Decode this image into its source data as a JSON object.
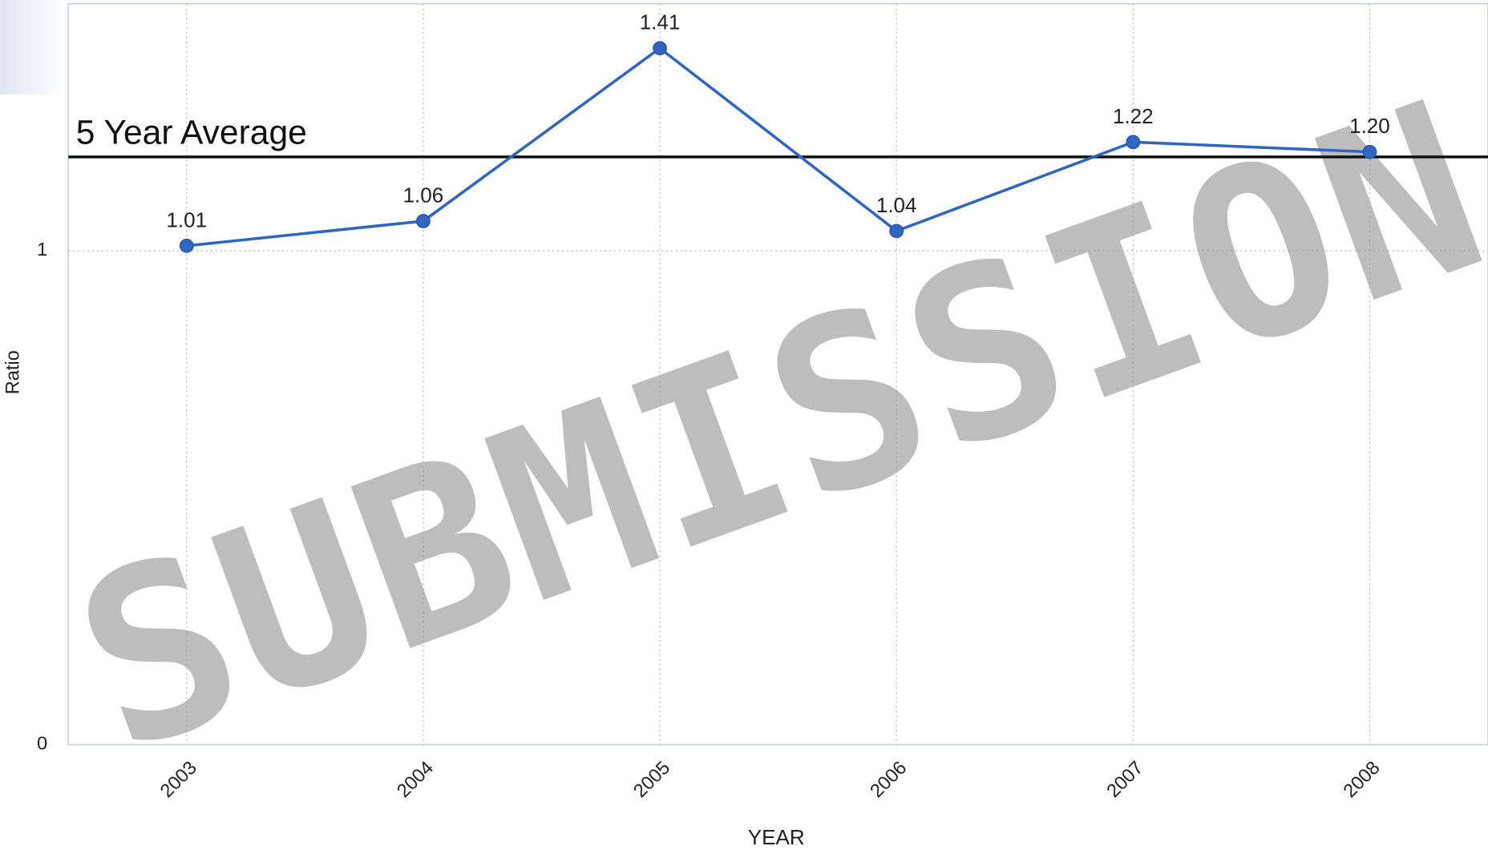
{
  "chart_data": {
    "type": "line",
    "categories": [
      "2003",
      "2004",
      "2005",
      "2006",
      "2007",
      "2008"
    ],
    "series": [
      {
        "name": "Ratio",
        "color": "#2f66c4",
        "values": [
          1.01,
          1.06,
          1.41,
          1.04,
          1.22,
          1.2
        ],
        "value_labels": [
          "1.01",
          "1.06",
          "1.41",
          "1.04",
          "1.22",
          "1.20"
        ]
      }
    ],
    "ylim": [
      0,
      1.5
    ],
    "yticks": [
      0,
      1
    ],
    "grid": true,
    "y_label": "Ratio",
    "x_label": "YEAR",
    "reference_line": {
      "label": "5 Year Average",
      "value": 1.19,
      "color": "#111111"
    },
    "watermark": "SUBMISSION"
  }
}
